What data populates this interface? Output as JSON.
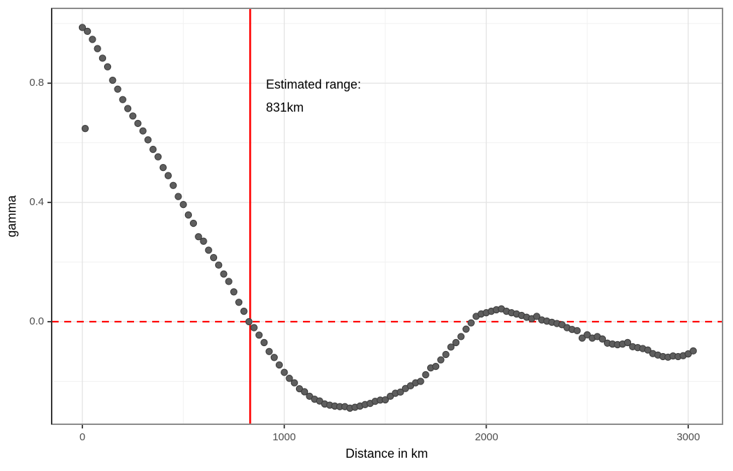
{
  "figure": {
    "background": "#FFFFFF"
  },
  "axes": {
    "x": {
      "title": "Distance in km",
      "ticks": [
        {
          "value": 0,
          "label": "0"
        },
        {
          "value": 1000,
          "label": "1000"
        },
        {
          "value": 2000,
          "label": "2000"
        },
        {
          "value": 3000,
          "label": "3000"
        }
      ]
    },
    "y": {
      "title": "gamma",
      "ticks": [
        {
          "value": 0.0,
          "label": "0.0"
        },
        {
          "value": 0.4,
          "label": "0.4"
        },
        {
          "value": 0.8,
          "label": "0.8"
        }
      ]
    }
  },
  "annotation": {
    "line1": "Estimated range:",
    "line2": "831km"
  },
  "chart_data": {
    "type": "scatter",
    "title": "",
    "xlabel": "Distance in km",
    "ylabel": "gamma",
    "xlim": [
      -152,
      3170
    ],
    "ylim": [
      -0.344,
      1.051
    ],
    "x_major_ticks": [
      0,
      1000,
      2000,
      3000
    ],
    "x_minor_ticks": [
      500,
      1500,
      2500
    ],
    "y_major_ticks": [
      0.0,
      0.4,
      0.8
    ],
    "y_minor_ticks": [
      -0.2,
      0.2,
      0.6,
      1.0
    ],
    "grid": true,
    "legend": "none",
    "point_color": "#5E5E5E",
    "point_stroke": "#3D3D3D",
    "grid_major_color": "#E3E3E3",
    "grid_minor_color": "#F1F1F1",
    "panel_border_color": "#8A8A8A",
    "axis_line_color": "#2B2B2B",
    "tick_mark_color": "#2F2F2F",
    "reference_lines": {
      "vertical": {
        "x": 831,
        "color": "#FF0000",
        "style": "solid",
        "meaning": "estimated range"
      },
      "horizontal": {
        "y": 0,
        "color": "#FF0000",
        "style": "dashed",
        "meaning": "zero gamma"
      }
    },
    "annotation_text": [
      "Estimated range:",
      "831km"
    ],
    "series": [
      {
        "name": "empirical-variogram",
        "points": [
          [
            0,
            0.987
          ],
          [
            14,
            0.648
          ],
          [
            25,
            0.974
          ],
          [
            50,
            0.947
          ],
          [
            75,
            0.916
          ],
          [
            100,
            0.884
          ],
          [
            125,
            0.855
          ],
          [
            150,
            0.81
          ],
          [
            175,
            0.78
          ],
          [
            200,
            0.745
          ],
          [
            225,
            0.715
          ],
          [
            250,
            0.69
          ],
          [
            275,
            0.665
          ],
          [
            300,
            0.64
          ],
          [
            325,
            0.61
          ],
          [
            350,
            0.578
          ],
          [
            375,
            0.553
          ],
          [
            400,
            0.517
          ],
          [
            425,
            0.49
          ],
          [
            450,
            0.457
          ],
          [
            475,
            0.42
          ],
          [
            500,
            0.393
          ],
          [
            525,
            0.358
          ],
          [
            550,
            0.33
          ],
          [
            575,
            0.285
          ],
          [
            600,
            0.27
          ],
          [
            625,
            0.24
          ],
          [
            650,
            0.215
          ],
          [
            675,
            0.19
          ],
          [
            700,
            0.16
          ],
          [
            725,
            0.135
          ],
          [
            750,
            0.1
          ],
          [
            775,
            0.065
          ],
          [
            800,
            0.035
          ],
          [
            825,
            0.0
          ],
          [
            850,
            -0.02
          ],
          [
            875,
            -0.045
          ],
          [
            900,
            -0.07
          ],
          [
            925,
            -0.1
          ],
          [
            950,
            -0.12
          ],
          [
            975,
            -0.145
          ],
          [
            1000,
            -0.17
          ],
          [
            1025,
            -0.19
          ],
          [
            1050,
            -0.205
          ],
          [
            1075,
            -0.225
          ],
          [
            1100,
            -0.235
          ],
          [
            1125,
            -0.25
          ],
          [
            1150,
            -0.26
          ],
          [
            1175,
            -0.266
          ],
          [
            1200,
            -0.276
          ],
          [
            1225,
            -0.28
          ],
          [
            1250,
            -0.283
          ],
          [
            1275,
            -0.285
          ],
          [
            1300,
            -0.285
          ],
          [
            1325,
            -0.29
          ],
          [
            1350,
            -0.287
          ],
          [
            1375,
            -0.283
          ],
          [
            1400,
            -0.278
          ],
          [
            1425,
            -0.274
          ],
          [
            1450,
            -0.267
          ],
          [
            1475,
            -0.263
          ],
          [
            1500,
            -0.262
          ],
          [
            1525,
            -0.25
          ],
          [
            1550,
            -0.24
          ],
          [
            1575,
            -0.236
          ],
          [
            1600,
            -0.224
          ],
          [
            1625,
            -0.215
          ],
          [
            1650,
            -0.205
          ],
          [
            1675,
            -0.2
          ],
          [
            1700,
            -0.178
          ],
          [
            1725,
            -0.155
          ],
          [
            1750,
            -0.15
          ],
          [
            1775,
            -0.128
          ],
          [
            1800,
            -0.11
          ],
          [
            1825,
            -0.085
          ],
          [
            1850,
            -0.07
          ],
          [
            1875,
            -0.05
          ],
          [
            1900,
            -0.025
          ],
          [
            1925,
            -0.004
          ],
          [
            1950,
            0.018
          ],
          [
            1975,
            0.026
          ],
          [
            2000,
            0.03
          ],
          [
            2025,
            0.035
          ],
          [
            2050,
            0.04
          ],
          [
            2075,
            0.043
          ],
          [
            2100,
            0.035
          ],
          [
            2125,
            0.03
          ],
          [
            2150,
            0.026
          ],
          [
            2175,
            0.021
          ],
          [
            2200,
            0.015
          ],
          [
            2225,
            0.01
          ],
          [
            2250,
            0.018
          ],
          [
            2275,
            0.006
          ],
          [
            2300,
            0.002
          ],
          [
            2325,
            -0.002
          ],
          [
            2350,
            -0.006
          ],
          [
            2375,
            -0.01
          ],
          [
            2400,
            -0.02
          ],
          [
            2425,
            -0.026
          ],
          [
            2450,
            -0.03
          ],
          [
            2475,
            -0.055
          ],
          [
            2500,
            -0.044
          ],
          [
            2525,
            -0.055
          ],
          [
            2550,
            -0.05
          ],
          [
            2575,
            -0.058
          ],
          [
            2600,
            -0.072
          ],
          [
            2625,
            -0.075
          ],
          [
            2650,
            -0.077
          ],
          [
            2675,
            -0.075
          ],
          [
            2700,
            -0.07
          ],
          [
            2725,
            -0.084
          ],
          [
            2750,
            -0.087
          ],
          [
            2775,
            -0.09
          ],
          [
            2800,
            -0.095
          ],
          [
            2825,
            -0.107
          ],
          [
            2850,
            -0.112
          ],
          [
            2875,
            -0.117
          ],
          [
            2900,
            -0.119
          ],
          [
            2925,
            -0.115
          ],
          [
            2950,
            -0.117
          ],
          [
            2975,
            -0.114
          ],
          [
            3000,
            -0.108
          ],
          [
            3025,
            -0.098
          ]
        ]
      }
    ]
  }
}
